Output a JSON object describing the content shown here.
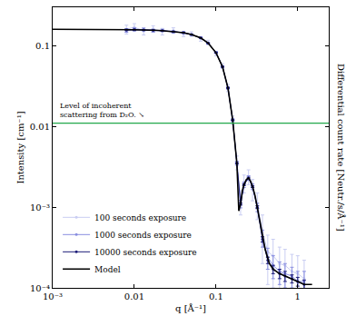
{
  "chart_data": {
    "type": "scatter",
    "log": true,
    "grid": false,
    "legend": "bottom left",
    "x_label": "q [Å⁻¹]",
    "y_label": "Intensity [cm⁻¹]",
    "y2_label": "Differential count rate [Neutr./s/Å⁻¹]",
    "xlim": [
      0.001,
      2.4
    ],
    "ylim": [
      0.0001,
      0.3
    ],
    "xticks": [
      {
        "value": 0.001,
        "label": "10⁻³"
      },
      0.01,
      0.1,
      1
    ],
    "yticks": [
      {
        "value": 0.0001,
        "label": "10⁻⁴"
      },
      {
        "value": 0.001,
        "label": "10⁻³"
      },
      0.01,
      0.1
    ],
    "reference_line": {
      "value": 0.011,
      "color": "#22a84a",
      "label": "Level of incoherent scattering from D₂O. ↘"
    },
    "series": [
      {
        "name": "100 seconds exposure",
        "color": "#c9cdf2",
        "type": "scatter",
        "marker": "circle",
        "x": [
          0.008,
          0.01,
          0.013,
          0.017,
          0.022,
          0.03,
          0.04,
          0.05,
          0.065,
          0.08,
          0.1,
          0.12,
          0.14,
          0.16,
          0.18,
          0.2,
          0.22,
          0.25,
          0.28,
          0.32,
          0.37,
          0.43,
          0.5,
          0.6,
          0.7,
          0.85,
          1.0,
          1.2
        ],
        "values": [
          0.16,
          0.17,
          0.152,
          0.162,
          0.15,
          0.155,
          0.14,
          0.14,
          0.122,
          0.11,
          0.08,
          0.056,
          0.03,
          0.012,
          0.0036,
          0.0012,
          0.002,
          0.0024,
          0.0017,
          0.0011,
          0.0005,
          0.00028,
          0.00025,
          0.0002,
          0.00019,
          0.00016,
          0.00015,
          0.00013
        ],
        "error": [
          0.02,
          0.018,
          0.016,
          0.015,
          0.014,
          0.012,
          0.01,
          0.009,
          0.008,
          0.007,
          0.005,
          0.004,
          0.003,
          0.0015,
          0.0007,
          0.0004,
          0.0005,
          0.0005,
          0.0005,
          0.0004,
          0.0003,
          0.00017,
          0.00015,
          0.00012,
          0.00011,
          0.0001,
          0.0001,
          9e-05
        ]
      },
      {
        "name": "1000 seconds exposure",
        "color": "#8a8fe0",
        "type": "scatter",
        "marker": "circle",
        "x": [
          0.008,
          0.01,
          0.013,
          0.017,
          0.022,
          0.03,
          0.04,
          0.05,
          0.065,
          0.08,
          0.1,
          0.12,
          0.14,
          0.16,
          0.18,
          0.2,
          0.22,
          0.25,
          0.28,
          0.32,
          0.37,
          0.43,
          0.5,
          0.6,
          0.7,
          0.85,
          1.0,
          1.2
        ],
        "values": [
          0.155,
          0.16,
          0.159,
          0.154,
          0.155,
          0.148,
          0.146,
          0.137,
          0.126,
          0.107,
          0.083,
          0.055,
          0.03,
          0.012,
          0.0035,
          0.0011,
          0.0019,
          0.0023,
          0.0018,
          0.001,
          0.00042,
          0.00024,
          0.00019,
          0.00016,
          0.00015,
          0.00014,
          0.00012,
          0.00012
        ],
        "error": [
          0.008,
          0.007,
          0.006,
          0.006,
          0.005,
          0.004,
          0.004,
          0.003,
          0.003,
          0.002,
          0.002,
          0.0015,
          0.001,
          0.0005,
          0.0002,
          0.00012,
          0.00015,
          0.00015,
          0.00015,
          0.00012,
          0.0001,
          7e-05,
          6e-05,
          5e-05,
          5e-05,
          4e-05,
          4e-05,
          4e-05
        ]
      },
      {
        "name": "10000 seconds exposure",
        "color": "#1c1c78",
        "type": "scatter",
        "marker": "circle",
        "x": [
          0.008,
          0.01,
          0.013,
          0.017,
          0.022,
          0.03,
          0.04,
          0.05,
          0.065,
          0.08,
          0.1,
          0.12,
          0.14,
          0.16,
          0.18,
          0.2,
          0.22,
          0.25,
          0.28,
          0.32,
          0.37,
          0.43,
          0.5,
          0.6,
          0.7,
          0.85,
          1.0,
          1.2
        ],
        "values": [
          0.157,
          0.158,
          0.157,
          0.156,
          0.154,
          0.15,
          0.145,
          0.138,
          0.125,
          0.108,
          0.082,
          0.055,
          0.03,
          0.012,
          0.0035,
          0.0011,
          0.0019,
          0.0023,
          0.0018,
          0.001,
          0.0004,
          0.00022,
          0.00017,
          0.00015,
          0.00014,
          0.00013,
          0.00012,
          0.00011
        ],
        "error": [
          0.003,
          0.003,
          0.002,
          0.002,
          0.002,
          0.0015,
          0.0012,
          0.001,
          0.001,
          0.0008,
          0.0006,
          0.0005,
          0.0003,
          0.00015,
          7e-05,
          4e-05,
          5e-05,
          5e-05,
          5e-05,
          4e-05,
          3e-05,
          2e-05,
          2e-05,
          2e-05,
          2e-05,
          1.5e-05,
          1.5e-05,
          1.5e-05
        ]
      },
      {
        "name": "Model",
        "color": "#000000",
        "type": "line",
        "line_style": "solid",
        "x": [
          0.001,
          0.003,
          0.006,
          0.01,
          0.02,
          0.03,
          0.04,
          0.05,
          0.065,
          0.08,
          0.1,
          0.12,
          0.14,
          0.16,
          0.17,
          0.18,
          0.19,
          0.2,
          0.21,
          0.22,
          0.235,
          0.25,
          0.265,
          0.28,
          0.3,
          0.32,
          0.35,
          0.4,
          0.45,
          0.5,
          0.6,
          0.7,
          0.85,
          1.0,
          1.2,
          1.5
        ],
        "values": [
          0.16,
          0.16,
          0.159,
          0.158,
          0.155,
          0.15,
          0.145,
          0.138,
          0.125,
          0.108,
          0.082,
          0.055,
          0.03,
          0.012,
          0.0065,
          0.0035,
          0.0009,
          0.0011,
          0.0016,
          0.0019,
          0.0022,
          0.0023,
          0.0021,
          0.0018,
          0.0014,
          0.001,
          0.0006,
          0.0003,
          0.0002,
          0.00017,
          0.00015,
          0.00014,
          0.00013,
          0.00012,
          0.00011,
          0.00011
        ]
      }
    ]
  }
}
